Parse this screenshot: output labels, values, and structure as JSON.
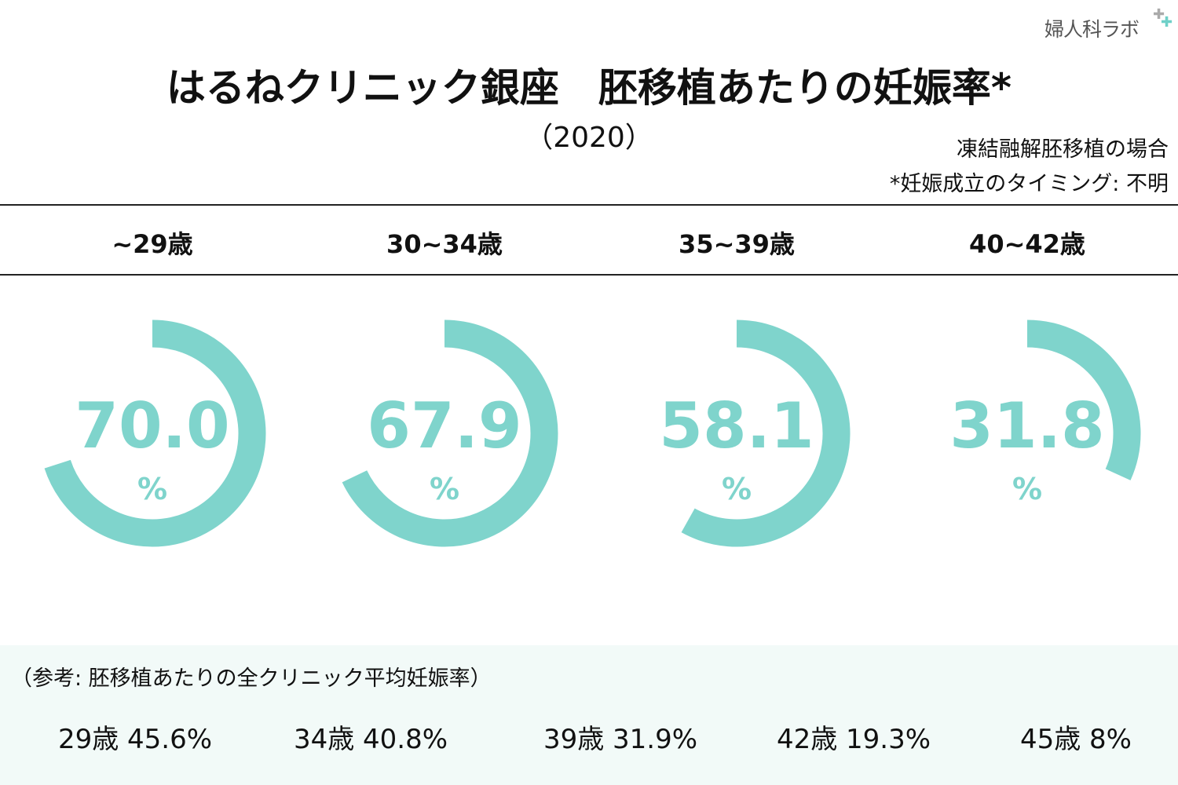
{
  "logo": "婦人科ラボ",
  "title": "はるねクリニック銀座　胚移植あたりの妊娠率*",
  "year": "（2020）",
  "notes": [
    "凍結融解胚移植の場合",
    "*妊娠成立のタイミング: 不明"
  ],
  "color": "#7fd4cc",
  "chart_data": {
    "type": "gauge",
    "unit": "%",
    "categories": [
      "~29歳",
      "30~34歳",
      "35~39歳",
      "40~42歳"
    ],
    "values": [
      70.0,
      67.9,
      58.1,
      31.8
    ],
    "labels": [
      "70.0",
      "67.9",
      "58.1",
      "31.8"
    ],
    "max": 100
  },
  "reference": {
    "title": "（参考: 胚移植あたりの全クリニック平均妊娠率）",
    "items": [
      "29歳 45.6%",
      "34歳 40.8%",
      "39歳 31.9%",
      "42歳 19.3%",
      "45歳 8%"
    ]
  }
}
